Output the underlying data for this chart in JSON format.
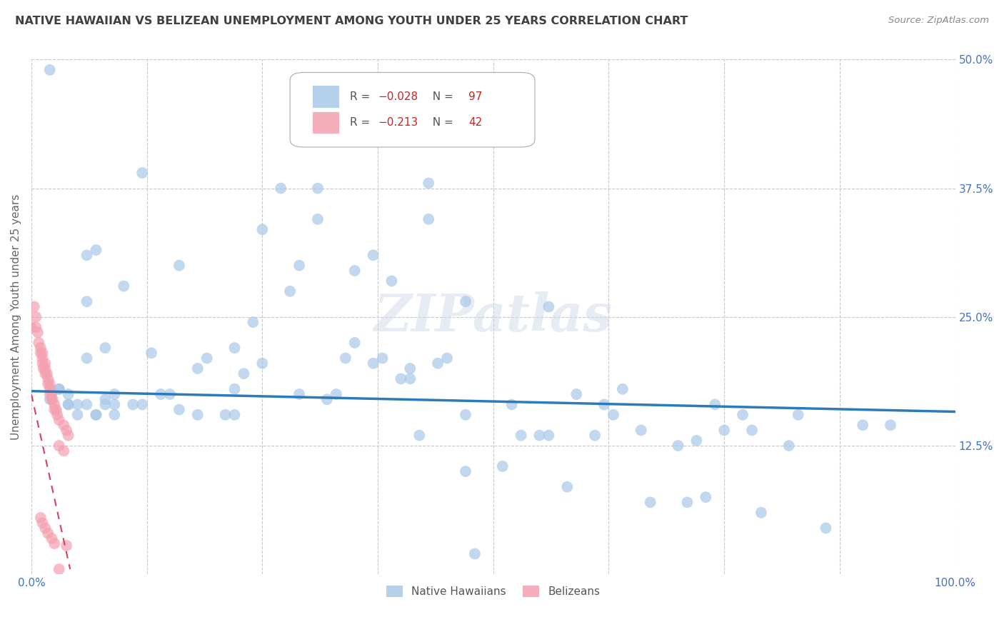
{
  "title": "NATIVE HAWAIIAN VS BELIZEAN UNEMPLOYMENT AMONG YOUTH UNDER 25 YEARS CORRELATION CHART",
  "source": "Source: ZipAtlas.com",
  "ylabel": "Unemployment Among Youth under 25 years",
  "xlim": [
    0,
    1.0
  ],
  "ylim": [
    0,
    0.5
  ],
  "yticks_right": [
    0.125,
    0.25,
    0.375,
    0.5
  ],
  "ytick_labels_right": [
    "12.5%",
    "25.0%",
    "37.5%",
    "50.0%"
  ],
  "legend_r1": "-0.028",
  "legend_n1": "97",
  "legend_r2": "-0.213",
  "legend_n2": "42",
  "blue_color": "#a8c8e8",
  "pink_color": "#f4a0b0",
  "line_blue_color": "#2b7bba",
  "line_pink_color": "#d44060",
  "grid_color": "#c8c8c8",
  "axis_color": "#4472c4",
  "title_color": "#404040",
  "watermark": "ZIPatlas",
  "native_hawaiian_x": [
    0.02,
    0.12,
    0.06,
    0.1,
    0.27,
    0.31,
    0.31,
    0.07,
    0.16,
    0.43,
    0.43,
    0.37,
    0.29,
    0.35,
    0.25,
    0.39,
    0.06,
    0.22,
    0.34,
    0.37,
    0.45,
    0.28,
    0.25,
    0.47,
    0.56,
    0.41,
    0.41,
    0.44,
    0.59,
    0.13,
    0.18,
    0.19,
    0.23,
    0.14,
    0.09,
    0.03,
    0.04,
    0.05,
    0.04,
    0.06,
    0.04,
    0.02,
    0.08,
    0.09,
    0.07,
    0.07,
    0.08,
    0.03,
    0.08,
    0.06,
    0.05,
    0.11,
    0.12,
    0.09,
    0.16,
    0.18,
    0.21,
    0.22,
    0.15,
    0.32,
    0.29,
    0.33,
    0.22,
    0.47,
    0.52,
    0.53,
    0.42,
    0.55,
    0.62,
    0.63,
    0.64,
    0.77,
    0.74,
    0.75,
    0.83,
    0.9,
    0.93,
    0.56,
    0.61,
    0.66,
    0.7,
    0.72,
    0.78,
    0.82,
    0.47,
    0.51,
    0.58,
    0.67,
    0.71,
    0.73,
    0.79,
    0.86,
    0.24,
    0.35,
    0.38,
    0.4,
    0.48
  ],
  "native_hawaiian_y": [
    0.49,
    0.39,
    0.31,
    0.28,
    0.375,
    0.375,
    0.345,
    0.315,
    0.3,
    0.38,
    0.345,
    0.31,
    0.3,
    0.295,
    0.335,
    0.285,
    0.265,
    0.22,
    0.21,
    0.205,
    0.21,
    0.275,
    0.205,
    0.265,
    0.26,
    0.19,
    0.2,
    0.205,
    0.175,
    0.215,
    0.2,
    0.21,
    0.195,
    0.175,
    0.175,
    0.18,
    0.175,
    0.165,
    0.165,
    0.165,
    0.165,
    0.17,
    0.165,
    0.155,
    0.155,
    0.155,
    0.17,
    0.18,
    0.22,
    0.21,
    0.155,
    0.165,
    0.165,
    0.165,
    0.16,
    0.155,
    0.155,
    0.18,
    0.175,
    0.17,
    0.175,
    0.175,
    0.155,
    0.155,
    0.165,
    0.135,
    0.135,
    0.135,
    0.165,
    0.155,
    0.18,
    0.155,
    0.165,
    0.14,
    0.155,
    0.145,
    0.145,
    0.135,
    0.135,
    0.14,
    0.125,
    0.13,
    0.14,
    0.125,
    0.1,
    0.105,
    0.085,
    0.07,
    0.07,
    0.075,
    0.06,
    0.045,
    0.245,
    0.225,
    0.21,
    0.19,
    0.02
  ],
  "belizean_x": [
    0.0,
    0.003,
    0.005,
    0.005,
    0.007,
    0.008,
    0.01,
    0.01,
    0.012,
    0.012,
    0.012,
    0.013,
    0.015,
    0.015,
    0.015,
    0.017,
    0.018,
    0.018,
    0.02,
    0.02,
    0.02,
    0.022,
    0.022,
    0.023,
    0.025,
    0.025,
    0.027,
    0.028,
    0.03,
    0.03,
    0.035,
    0.035,
    0.038,
    0.038,
    0.04,
    0.01,
    0.012,
    0.015,
    0.018,
    0.022,
    0.025,
    0.03
  ],
  "belizean_y": [
    0.24,
    0.26,
    0.25,
    0.24,
    0.235,
    0.225,
    0.22,
    0.215,
    0.215,
    0.21,
    0.205,
    0.2,
    0.205,
    0.2,
    0.195,
    0.195,
    0.19,
    0.185,
    0.185,
    0.18,
    0.175,
    0.175,
    0.17,
    0.17,
    0.165,
    0.16,
    0.16,
    0.155,
    0.15,
    0.125,
    0.145,
    0.12,
    0.14,
    0.028,
    0.135,
    0.055,
    0.05,
    0.045,
    0.04,
    0.035,
    0.03,
    0.005
  ]
}
